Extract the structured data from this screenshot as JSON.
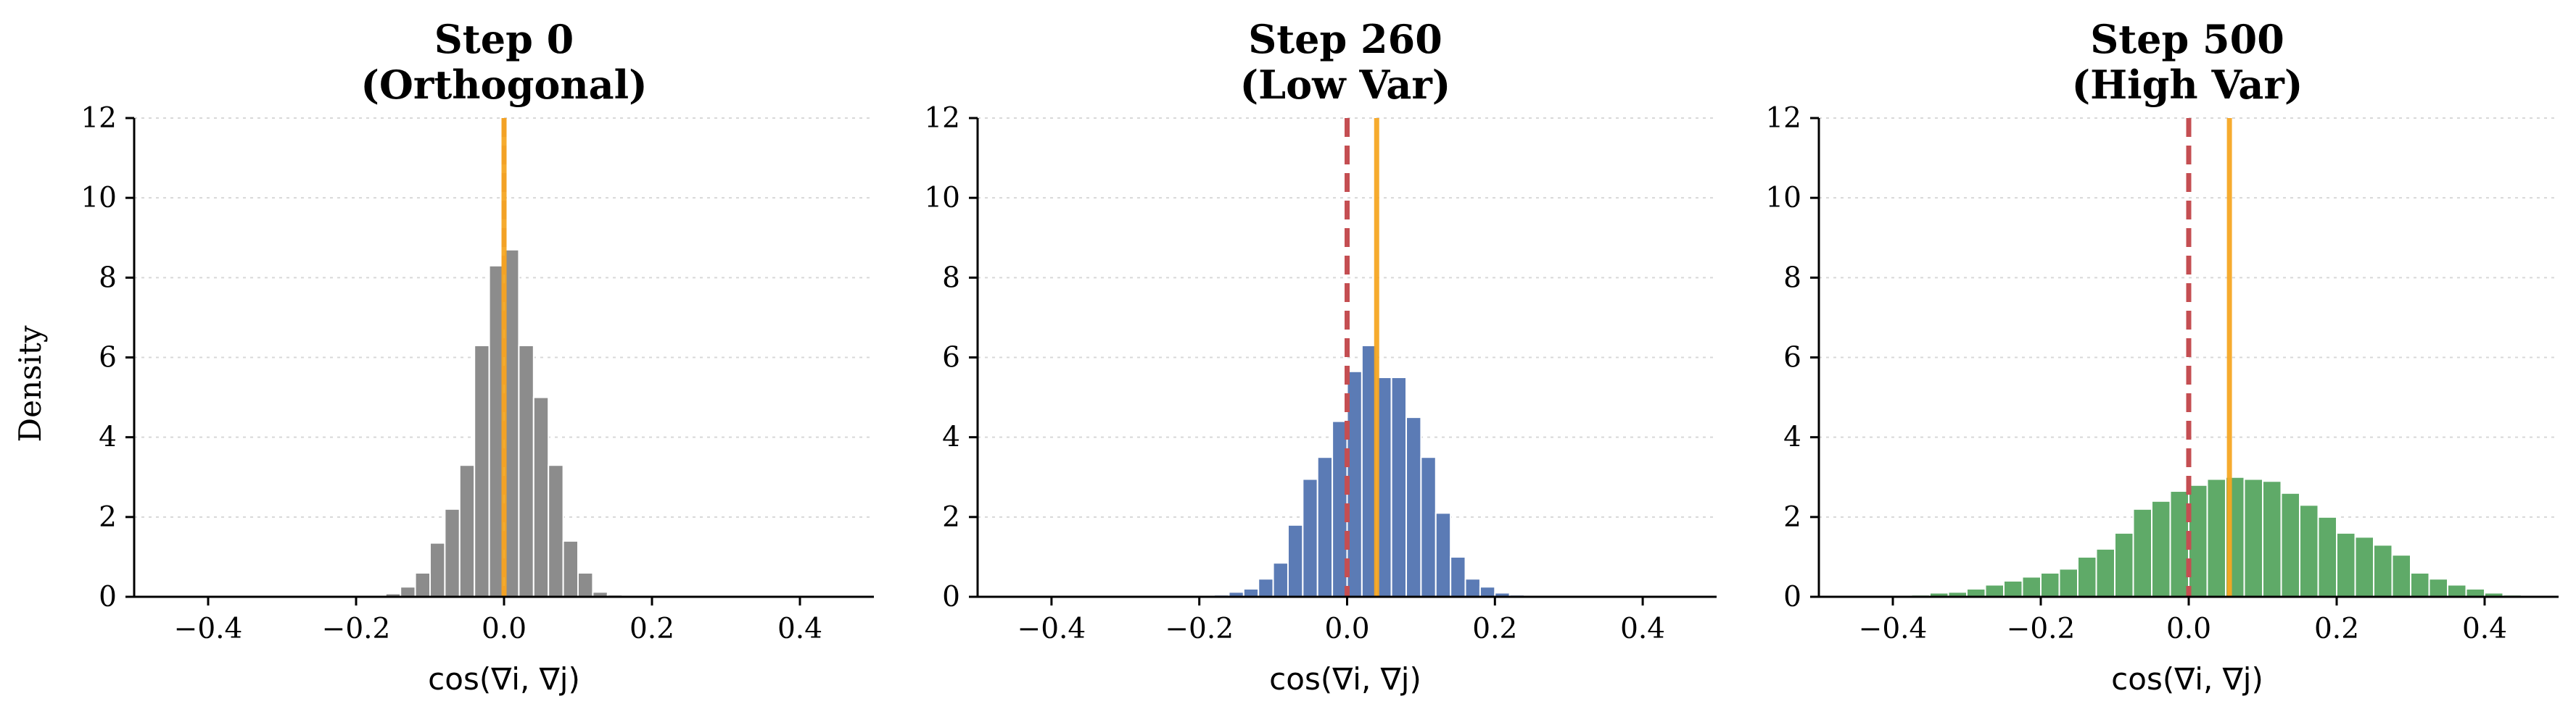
{
  "figure": {
    "ylabel": "Density",
    "colors": {
      "zero_line": "#c44e52",
      "mean_line": "#f5a623",
      "bar_edge": "#ffffff"
    }
  },
  "chart_data": [
    {
      "type": "bar",
      "title_line1": "Step 0",
      "title_line2": "(Orthogonal)",
      "xlabel": "cos(∇i, ∇j)",
      "xlim": [
        -0.5,
        0.5
      ],
      "ylim": [
        0,
        12
      ],
      "xticks": [
        "−0.4",
        "−0.2",
        "0.0",
        "0.2",
        "0.4"
      ],
      "yticks": [
        "0",
        "2",
        "4",
        "6",
        "8",
        "10",
        "12"
      ],
      "color": "#8c8c8c",
      "bin_width": 0.02,
      "bins_start": [
        -0.16,
        -0.14,
        -0.12,
        -0.1,
        -0.08,
        -0.06,
        -0.04,
        -0.02,
        0.0,
        0.02,
        0.04,
        0.06,
        0.08,
        0.1,
        0.12,
        0.14
      ],
      "values": [
        0.08,
        0.25,
        0.6,
        1.35,
        2.2,
        3.3,
        6.3,
        8.3,
        8.7,
        6.3,
        5.0,
        3.3,
        1.4,
        0.6,
        0.12,
        0.05
      ],
      "zero_line": 0.0,
      "mean_line": 0.0
    },
    {
      "type": "bar",
      "title_line1": "Step 260",
      "title_line2": "(Low Var)",
      "xlabel": "cos(∇i, ∇j)",
      "xlim": [
        -0.5,
        0.5
      ],
      "ylim": [
        0,
        12
      ],
      "xticks": [
        "−0.4",
        "−0.2",
        "0.0",
        "0.2",
        "0.4"
      ],
      "yticks": [
        "0",
        "2",
        "4",
        "6",
        "8",
        "10",
        "12"
      ],
      "color": "#5b7bb5",
      "bin_width": 0.02,
      "bins_start": [
        -0.2,
        -0.18,
        -0.16,
        -0.14,
        -0.12,
        -0.1,
        -0.08,
        -0.06,
        -0.04,
        -0.02,
        0.0,
        0.02,
        0.04,
        0.06,
        0.08,
        0.1,
        0.12,
        0.14,
        0.16,
        0.18,
        0.2,
        0.22,
        0.24
      ],
      "values": [
        0.02,
        0.05,
        0.12,
        0.2,
        0.45,
        0.85,
        1.8,
        2.95,
        3.5,
        4.4,
        5.65,
        6.3,
        5.5,
        5.5,
        4.5,
        3.5,
        2.1,
        1.0,
        0.45,
        0.25,
        0.1,
        0.05,
        0.02
      ],
      "zero_line": 0.0,
      "mean_line": 0.04
    },
    {
      "type": "bar",
      "title_line1": "Step 500",
      "title_line2": "(High Var)",
      "xlabel": "cos(∇i, ∇j)",
      "xlim": [
        -0.5,
        0.5
      ],
      "ylim": [
        0,
        12
      ],
      "xticks": [
        "−0.4",
        "−0.2",
        "0.0",
        "0.2",
        "0.4"
      ],
      "yticks": [
        "0",
        "2",
        "4",
        "6",
        "8",
        "10",
        "12"
      ],
      "color": "#5faa68",
      "bin_width": 0.025,
      "bins_start": [
        -0.375,
        -0.35,
        -0.325,
        -0.3,
        -0.275,
        -0.25,
        -0.225,
        -0.2,
        -0.175,
        -0.15,
        -0.125,
        -0.1,
        -0.075,
        -0.05,
        -0.025,
        0.0,
        0.025,
        0.05,
        0.075,
        0.1,
        0.125,
        0.15,
        0.175,
        0.2,
        0.225,
        0.25,
        0.275,
        0.3,
        0.325,
        0.35,
        0.375,
        0.4,
        0.425
      ],
      "values": [
        0.05,
        0.1,
        0.12,
        0.2,
        0.3,
        0.4,
        0.5,
        0.6,
        0.7,
        1.0,
        1.2,
        1.6,
        2.2,
        2.4,
        2.65,
        2.8,
        2.95,
        3.0,
        2.95,
        2.9,
        2.6,
        2.3,
        2.0,
        1.6,
        1.5,
        1.3,
        1.05,
        0.6,
        0.45,
        0.3,
        0.2,
        0.1,
        0.05
      ],
      "zero_line": 0.0,
      "mean_line": 0.055
    }
  ]
}
